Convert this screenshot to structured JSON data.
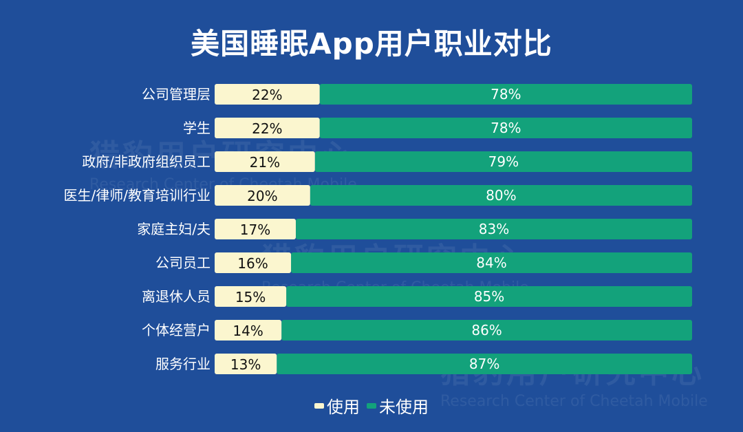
{
  "watermark": {
    "cn": "猎豹用户研究中心",
    "en": "Research Center of Cheetah Mobile"
  },
  "colors": {
    "background": "#1f4e9a",
    "used": "#fbf6cf",
    "unused": "#13a27b",
    "text": "#ffffff"
  },
  "chart_data": {
    "type": "bar",
    "orientation": "horizontal",
    "stacked": true,
    "title": "美国睡眠App用户职业对比",
    "categories": [
      "公司管理层",
      "学生",
      "政府/非政府组织员工",
      "医生/律师/教育培训行业",
      "家庭主妇/夫",
      "公司员工",
      "离退休人员",
      "个体经营户",
      "服务行业"
    ],
    "series": [
      {
        "name": "使用",
        "values": [
          22,
          22,
          21,
          20,
          17,
          16,
          15,
          14,
          13
        ],
        "labels": [
          "22%",
          "22%",
          "21%",
          "20%",
          "17%",
          "16%",
          "15%",
          "14%",
          "13%"
        ]
      },
      {
        "name": "未使用",
        "values": [
          78,
          78,
          79,
          80,
          83,
          84,
          85,
          86,
          87
        ],
        "labels": [
          "78%",
          "78%",
          "79%",
          "80%",
          "83%",
          "84%",
          "85%",
          "86%",
          "87%"
        ]
      }
    ],
    "xlim": [
      0,
      100
    ],
    "legend": "bottom",
    "grid": false
  }
}
